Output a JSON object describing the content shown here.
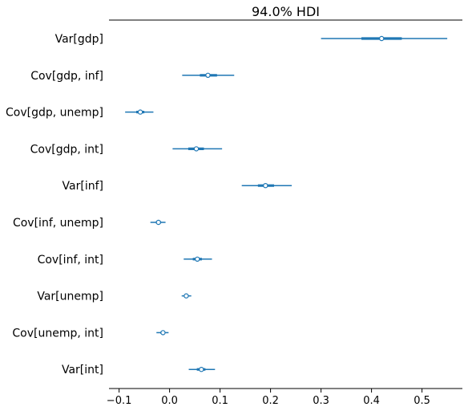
{
  "chart_data": {
    "type": "forest",
    "title": "94.0% HDI",
    "xlim": [
      -0.12,
      0.58
    ],
    "x_ticks": [
      -0.1,
      0.0,
      0.1,
      0.2,
      0.3,
      0.4,
      0.5
    ],
    "x_tick_labels": [
      "−0.1",
      "0.0",
      "0.1",
      "0.2",
      "0.3",
      "0.4",
      "0.5"
    ],
    "color": "#1f77b4",
    "items": [
      {
        "label": "Var[gdp]",
        "mean": 0.42,
        "hdi_low": 0.3,
        "hdi_high": 0.55,
        "iqr_low": 0.38,
        "iqr_high": 0.46
      },
      {
        "label": "Cov[gdp, inf]",
        "mean": 0.076,
        "hdi_low": 0.025,
        "hdi_high": 0.128,
        "iqr_low": 0.06,
        "iqr_high": 0.094
      },
      {
        "label": "Cov[gdp, unemp]",
        "mean": -0.058,
        "hdi_low": -0.088,
        "hdi_high": -0.032,
        "iqr_low": -0.066,
        "iqr_high": -0.05
      },
      {
        "label": "Cov[gdp, int]",
        "mean": 0.053,
        "hdi_low": 0.006,
        "hdi_high": 0.104,
        "iqr_low": 0.037,
        "iqr_high": 0.068
      },
      {
        "label": "Var[inf]",
        "mean": 0.19,
        "hdi_low": 0.143,
        "hdi_high": 0.242,
        "iqr_low": 0.175,
        "iqr_high": 0.207
      },
      {
        "label": "Cov[inf, unemp]",
        "mean": -0.022,
        "hdi_low": -0.038,
        "hdi_high": -0.008,
        "iqr_low": -0.027,
        "iqr_high": -0.017
      },
      {
        "label": "Cov[inf, int]",
        "mean": 0.055,
        "hdi_low": 0.028,
        "hdi_high": 0.084,
        "iqr_low": 0.046,
        "iqr_high": 0.064
      },
      {
        "label": "Var[unemp]",
        "mean": 0.033,
        "hdi_low": 0.024,
        "hdi_high": 0.043,
        "iqr_low": 0.029,
        "iqr_high": 0.036
      },
      {
        "label": "Cov[unemp, int]",
        "mean": -0.013,
        "hdi_low": -0.026,
        "hdi_high": -0.002,
        "iqr_low": -0.018,
        "iqr_high": -0.009
      },
      {
        "label": "Var[int]",
        "mean": 0.063,
        "hdi_low": 0.038,
        "hdi_high": 0.09,
        "iqr_low": 0.054,
        "iqr_high": 0.071
      }
    ]
  }
}
